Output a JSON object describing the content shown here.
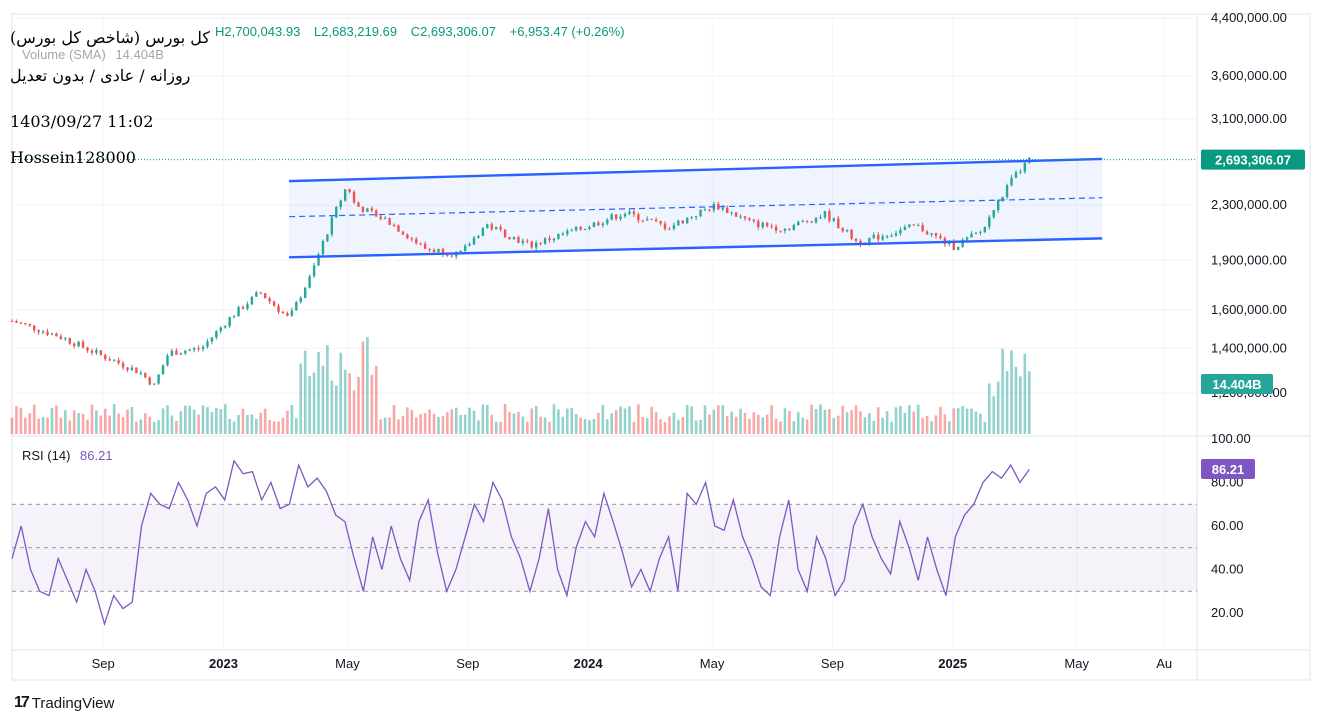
{
  "header": {
    "symbol_title": "(کل بورس (شاخص کل بورس",
    "chart_type": "روزانه / عادی / بدون تعدیل",
    "timestamp": "1403/09/27 11:02",
    "author": "Hossein128000",
    "ohlc_high": "H2,700,043.93",
    "ohlc_low": "L2,683,219.69",
    "ohlc_close": "C2,693,306.07",
    "ohlc_change": "+6,953.47 (+0.26%)",
    "volume_label": "Volume (SMA)",
    "volume_value": "14.404B",
    "rsi_label": "RSI (14)",
    "rsi_value": "86.21"
  },
  "brand": {
    "name": "TradingView"
  },
  "colors": {
    "up": "#26a69a",
    "down": "#ef5350",
    "channel": "#2962ff",
    "rsi": "#7e57c2",
    "last_price_badge": "#089981",
    "rsi_badge": "#7e57c2"
  },
  "chart_data": [
    {
      "type": "candlestick",
      "price_ticks": [
        "4,400,000.00",
        "3,600,000.00",
        "3,100,000.00",
        "2,300,000.00",
        "1,900,000.00",
        "1,600,000.00",
        "1,400,000.00",
        "1,200,000.00"
      ],
      "x_ticks": [
        "Sep",
        "2023",
        "May",
        "Sep",
        "2024",
        "May",
        "Sep",
        "2025",
        "May",
        "Au"
      ],
      "last_price": "2,693,306.07",
      "volume_badge": "14.404B",
      "log_scale": true,
      "price_series_approx": [
        [
          2022.42,
          1540000
        ],
        [
          2022.55,
          1460000
        ],
        [
          2022.66,
          1370000
        ],
        [
          2022.77,
          1290000
        ],
        [
          2022.81,
          1230000
        ],
        [
          2022.85,
          1380000
        ],
        [
          2022.94,
          1400000
        ],
        [
          2023.02,
          1560000
        ],
        [
          2023.1,
          1700000
        ],
        [
          2023.18,
          1550000
        ],
        [
          2023.24,
          1800000
        ],
        [
          2023.3,
          2200000
        ],
        [
          2023.34,
          2470000
        ],
        [
          2023.36,
          2300000
        ],
        [
          2023.45,
          2180000
        ],
        [
          2023.55,
          1980000
        ],
        [
          2023.65,
          1940000
        ],
        [
          2023.72,
          2150000
        ],
        [
          2023.84,
          2000000
        ],
        [
          2023.98,
          2120000
        ],
        [
          2024.1,
          2240000
        ],
        [
          2024.22,
          2130000
        ],
        [
          2024.35,
          2300000
        ],
        [
          2024.45,
          2160000
        ],
        [
          2024.54,
          2120000
        ],
        [
          2024.65,
          2230000
        ],
        [
          2024.74,
          2020000
        ],
        [
          2024.9,
          2140000
        ],
        [
          2025.0,
          1990000
        ],
        [
          2025.08,
          2100000
        ],
        [
          2025.16,
          2500000
        ],
        [
          2025.21,
          2693306
        ]
      ],
      "channel": {
        "upper": [
          [
            2023.18,
            2500000
          ],
          [
            2025.41,
            2700000
          ]
        ],
        "middle": [
          [
            2023.18,
            2210000
          ],
          [
            2025.41,
            2360000
          ]
        ],
        "lower": [
          [
            2023.18,
            1920000
          ],
          [
            2025.41,
            2050000
          ]
        ]
      }
    },
    {
      "type": "line",
      "name": "RSI (14)",
      "y_ticks": [
        "100.00",
        "80.00",
        "60.00",
        "40.00",
        "20.00"
      ],
      "ylim": [
        0,
        100
      ],
      "bands": [
        30,
        50,
        70
      ],
      "last_value": "86.21",
      "values_approx": [
        45,
        60,
        40,
        30,
        28,
        45,
        35,
        25,
        40,
        30,
        15,
        28,
        22,
        25,
        60,
        75,
        70,
        68,
        80,
        72,
        60,
        75,
        78,
        72,
        90,
        84,
        85,
        72,
        80,
        68,
        70,
        88,
        78,
        82,
        76,
        65,
        62,
        45,
        30,
        55,
        40,
        60,
        45,
        35,
        62,
        72,
        48,
        30,
        40,
        55,
        70,
        62,
        80,
        72,
        55,
        45,
        30,
        45,
        68,
        40,
        28,
        50,
        62,
        55,
        75,
        62,
        48,
        32,
        40,
        30,
        45,
        55,
        30,
        75,
        70,
        80,
        60,
        58,
        72,
        55,
        45,
        32,
        28,
        55,
        72,
        40,
        30,
        55,
        45,
        28,
        35,
        60,
        70,
        55,
        45,
        38,
        62,
        50,
        35,
        55,
        40,
        28,
        55,
        65,
        70,
        80,
        85,
        82,
        88,
        80,
        86
      ]
    }
  ]
}
